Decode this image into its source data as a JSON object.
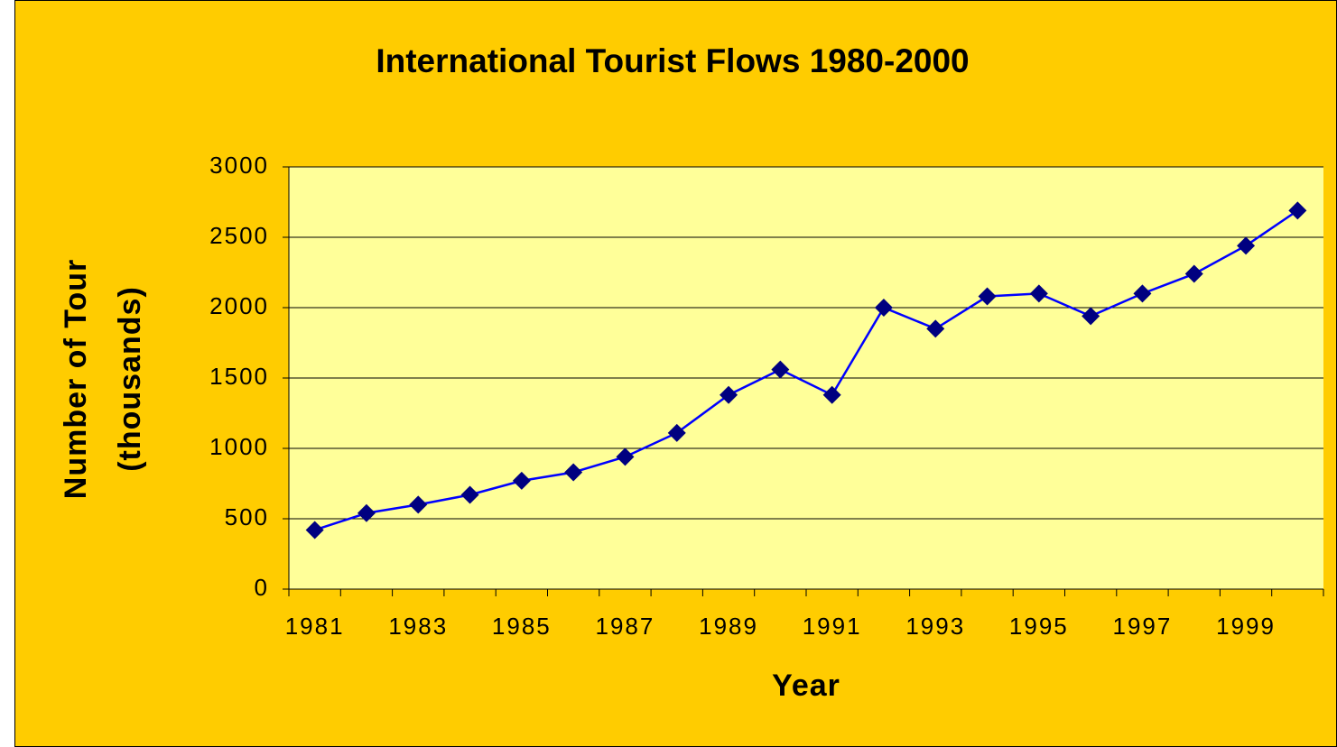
{
  "chart_data": {
    "type": "line",
    "title": "International Tourist Flows 1980-2000",
    "xlabel": "Year",
    "ylabel": [
      "Number of Tour",
      "(thousands)"
    ],
    "categories": [
      "1981",
      null,
      "1983",
      null,
      "1985",
      null,
      "1987",
      null,
      "1989",
      null,
      "1991",
      null,
      "1993",
      null,
      "1995",
      null,
      "1997",
      null,
      "1999",
      null
    ],
    "series": [
      {
        "name": "International Tourist Flows",
        "color": "#0000ff",
        "marker_color": "#000080",
        "values": [
          420,
          540,
          600,
          670,
          770,
          830,
          940,
          1110,
          1380,
          1560,
          1380,
          2000,
          1850,
          2080,
          2100,
          1940,
          2100,
          2240,
          2440,
          2690
        ]
      }
    ],
    "ylim": [
      0,
      3000
    ],
    "yticks": [
      0,
      500,
      1000,
      1500,
      2000,
      2500,
      3000
    ],
    "grid": true
  }
}
